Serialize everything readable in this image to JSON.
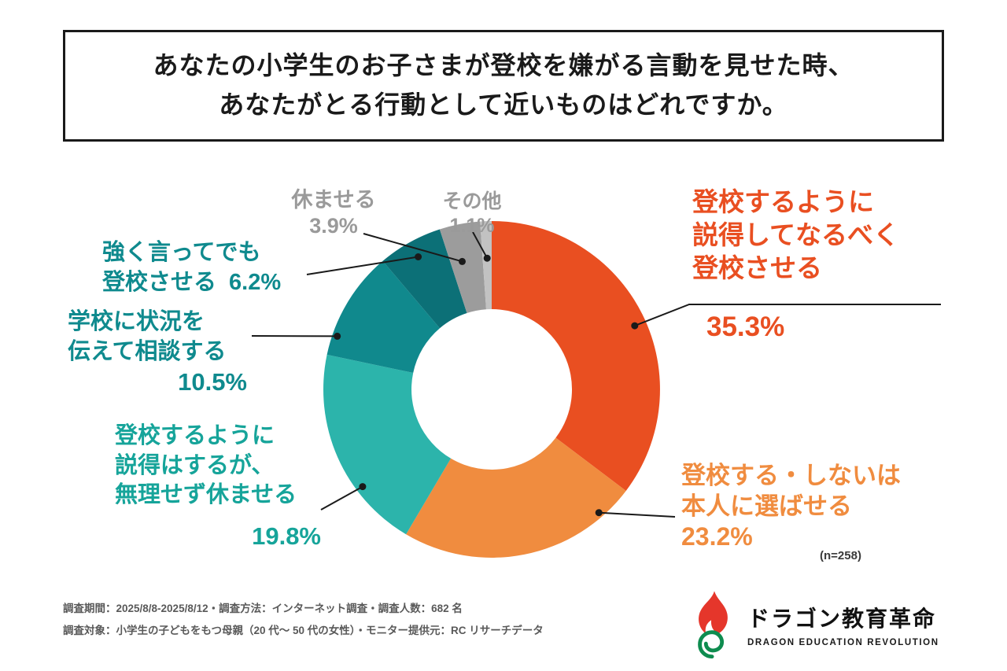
{
  "title": {
    "line1": "あなたの小学生のお子さまが登校を嫌がる言動を見せた時、",
    "line2": "あなたがとる行動として近いものはどれですか。"
  },
  "chart_data": {
    "type": "pie",
    "subtype": "donut",
    "start_angle_deg": 0,
    "direction": "clockwise",
    "n_note": "(n=258)",
    "segments": [
      {
        "label": "登校するように説得してなるべく登校させる",
        "label_lines": [
          "登校するように",
          "説得してなるべく",
          "登校させる"
        ],
        "value": 35.3,
        "pct_text": "35.3%",
        "color": "#E94F21",
        "text_color": "#E94F21"
      },
      {
        "label": "登校する・しないは本人に選ばせる",
        "label_lines": [
          "登校する・しないは",
          "本人に選ばせる"
        ],
        "value": 23.2,
        "pct_text": "23.2%",
        "color": "#F08C3F",
        "text_color": "#F08C3F"
      },
      {
        "label": "登校するように説得はするが、無理せず休ませる",
        "label_lines": [
          "登校するように",
          "説得はするが、",
          "無理せず休ませる"
        ],
        "value": 19.8,
        "pct_text": "19.8%",
        "color": "#2CB4AB",
        "text_color": "#16A49A"
      },
      {
        "label": "学校に状況を伝えて相談する",
        "label_lines": [
          "学校に状況を",
          "伝えて相談する"
        ],
        "value": 10.5,
        "pct_text": "10.5%",
        "color": "#10898D",
        "text_color": "#0F8A8E"
      },
      {
        "label": "強く言ってでも登校させる",
        "label_lines": [
          "強く言ってでも",
          "登校させる"
        ],
        "value": 6.2,
        "pct_text": "6.2%",
        "color": "#0C7077",
        "text_color": "#0F8A8E"
      },
      {
        "label": "休ませる",
        "label_lines": [
          "休ませる"
        ],
        "value": 3.9,
        "pct_text": "3.9%",
        "color": "#9C9C9C",
        "text_color": "#9A9A9A"
      },
      {
        "label": "その他",
        "label_lines": [
          "その他"
        ],
        "value": 1.1,
        "pct_text": "1.1%",
        "color": "#C2C2C2",
        "text_color": "#9A9A9A"
      }
    ]
  },
  "footer": {
    "line1": "調査期間：2025/8/8-2025/8/12・調査方法：インターネット調査・調査人数：682 名",
    "line2": "調査対象：小学生の子どもをもつ母親（20 代〜 50 代の女性）・モニター提供元：RC リサーチデータ"
  },
  "logo": {
    "name_jp": "ドラゴン教育革命",
    "name_en": "DRAGON EDUCATION REVOLUTION",
    "red": "#E5362B",
    "green": "#0E8C4F"
  }
}
